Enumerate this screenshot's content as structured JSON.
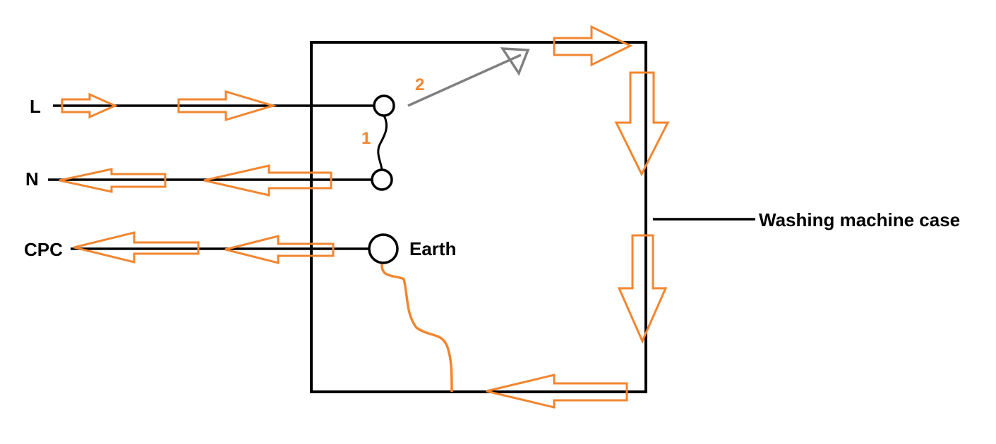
{
  "labels": {
    "live": "L",
    "neutral": "N",
    "cpc": "CPC",
    "earth": "Earth",
    "case": "Washing machine case",
    "step_one": "1",
    "step_two": "2"
  },
  "colors": {
    "wire": "#000000",
    "fault_path": "#f28630",
    "fault_arrow": "#808080",
    "background": "#ffffff"
  }
}
